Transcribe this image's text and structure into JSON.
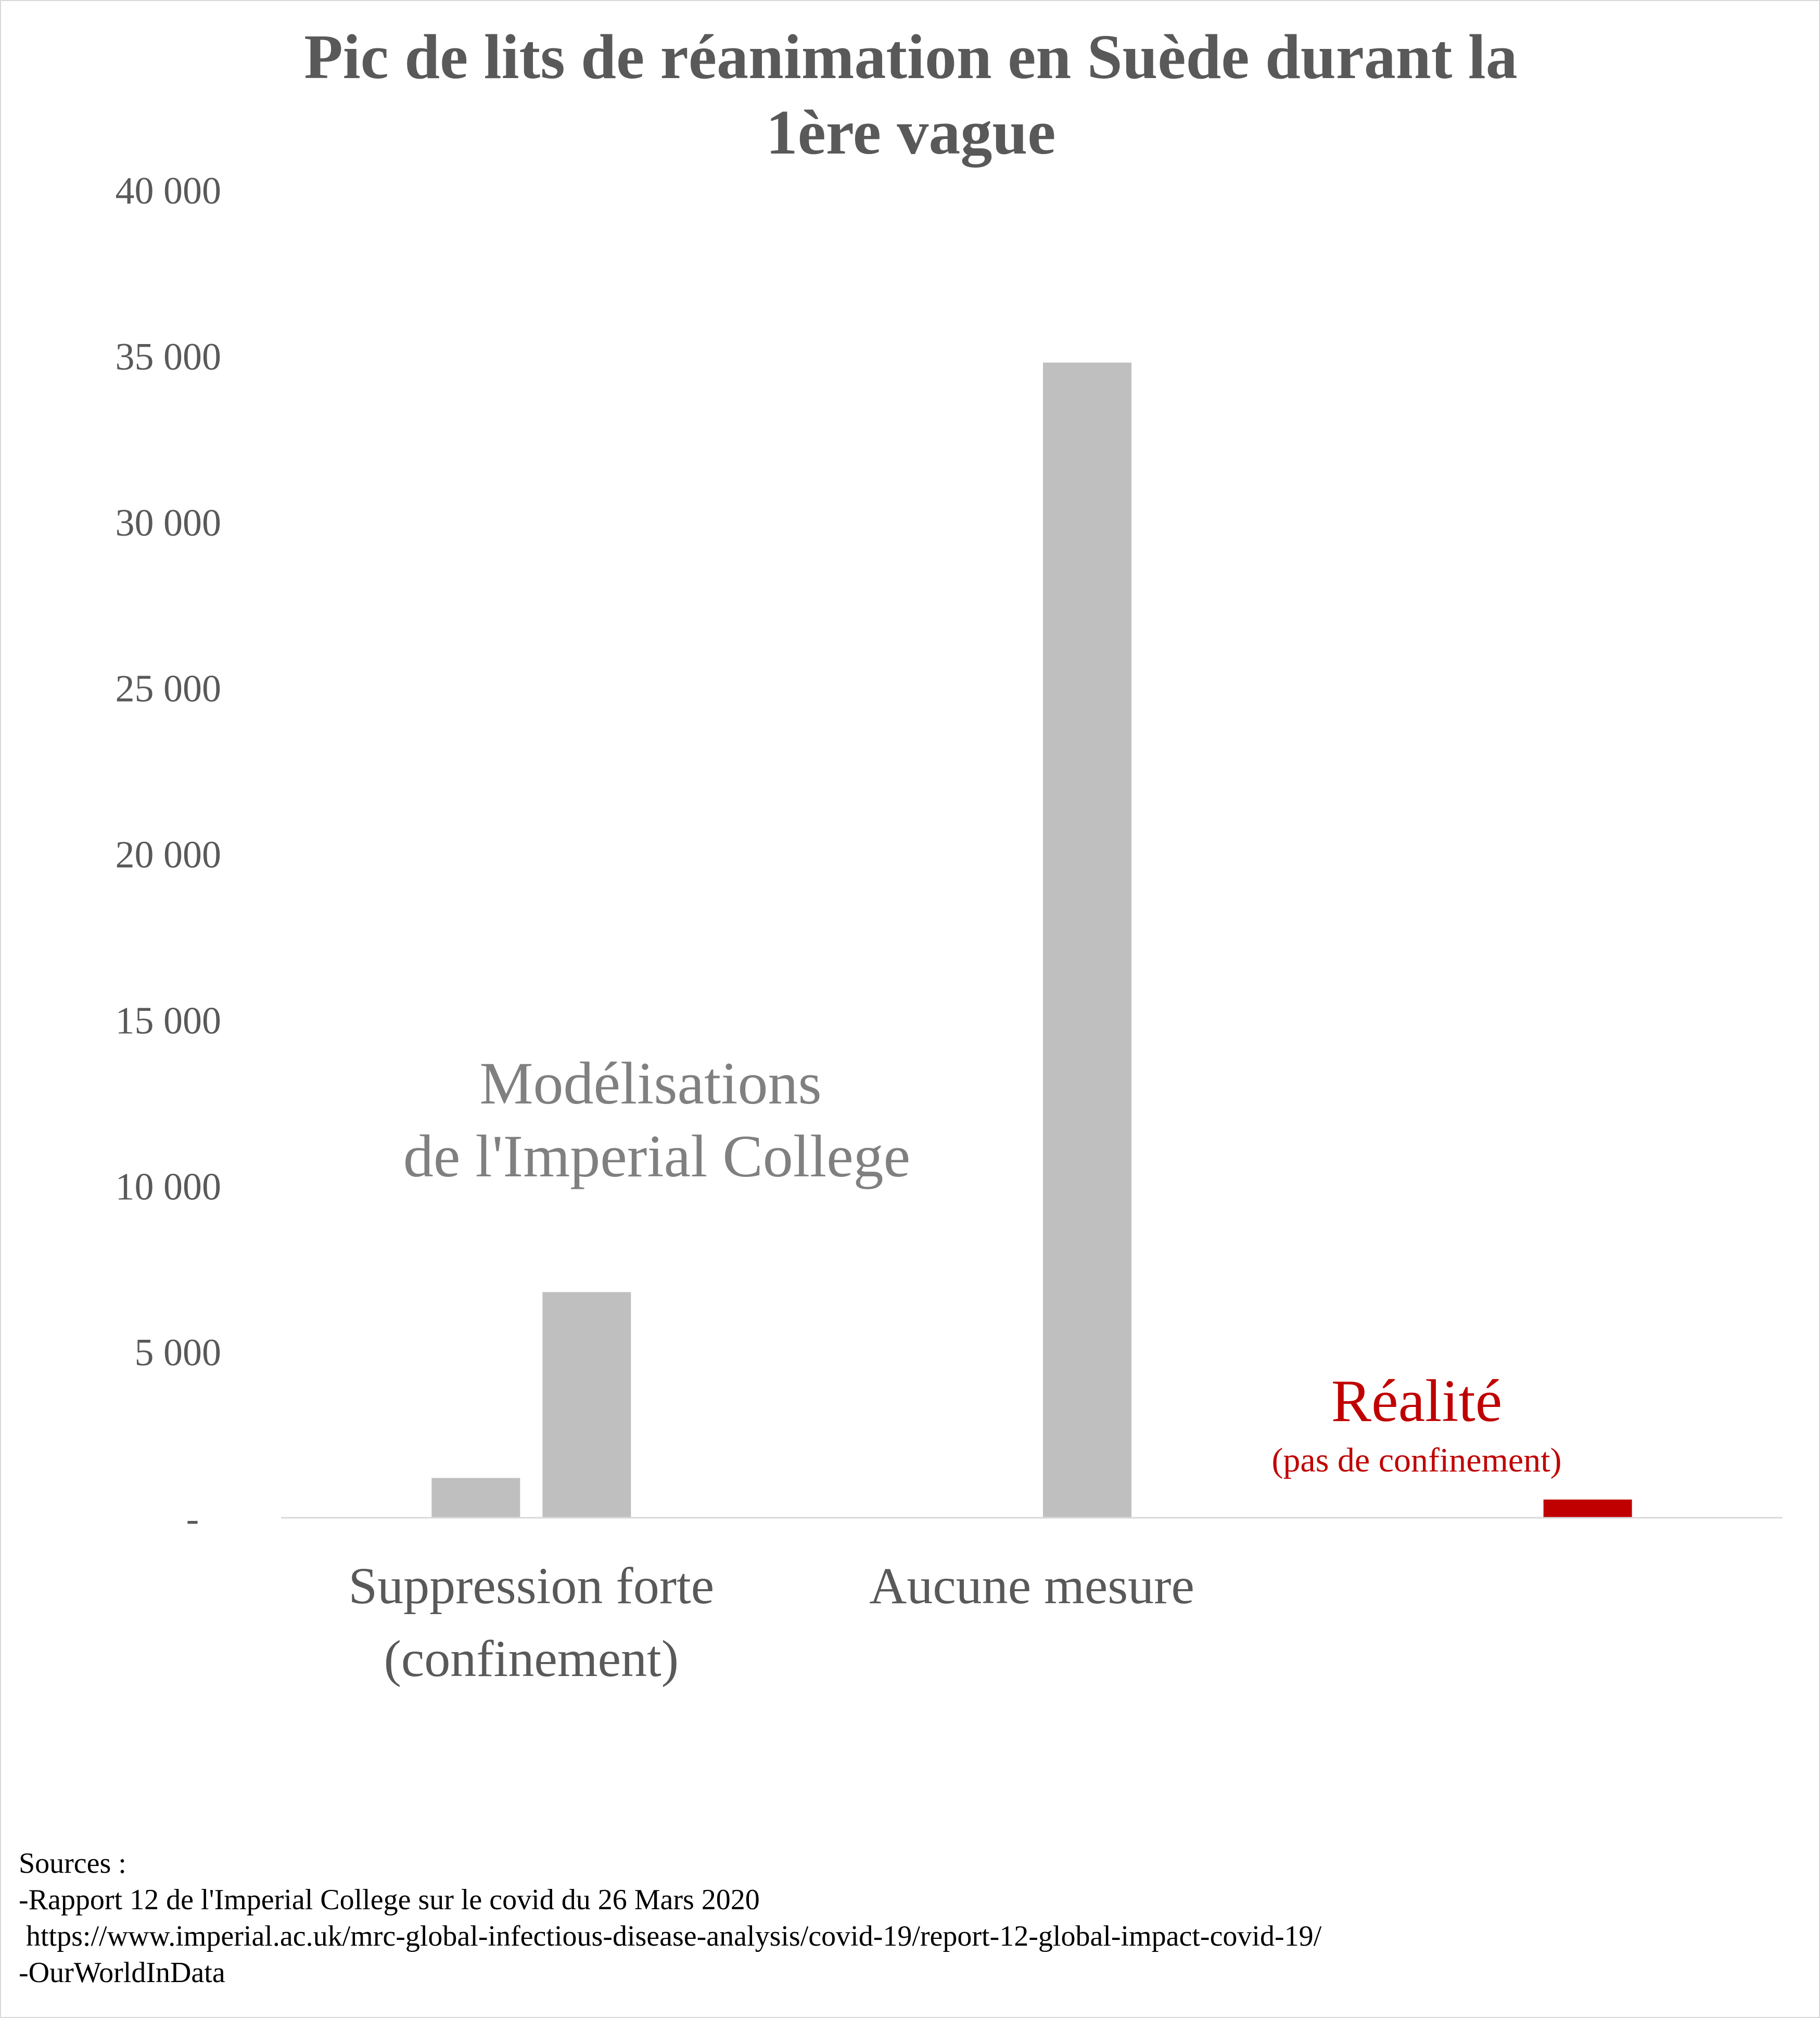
{
  "chart_data": {
    "type": "bar",
    "title_lines": [
      "Pic de lits de réanimation en Suède durant la",
      "1ère vague"
    ],
    "categories": [
      {
        "lines": [
          "Suppression forte",
          "(confinement)"
        ]
      },
      {
        "lines": [
          "Aucune mesure"
        ]
      },
      {
        "lines": [
          ""
        ]
      }
    ],
    "bars": [
      {
        "category_index": 0,
        "slot": 0,
        "value": 1200,
        "color": "#bfbfbf"
      },
      {
        "category_index": 0,
        "slot": 1,
        "value": 6800,
        "color": "#bfbfbf"
      },
      {
        "category_index": 1,
        "slot": 1,
        "value": 34800,
        "color": "#bfbfbf"
      },
      {
        "category_index": 2,
        "slot": 1,
        "value": 550,
        "color": "#c00000"
      }
    ],
    "ylim": [
      0,
      40000
    ],
    "yticks": [
      {
        "value": 0,
        "label": "-"
      },
      {
        "value": 5000,
        "label": "5 000"
      },
      {
        "value": 10000,
        "label": "10 000"
      },
      {
        "value": 15000,
        "label": "15 000"
      },
      {
        "value": 20000,
        "label": "20 000"
      },
      {
        "value": 25000,
        "label": "25 000"
      },
      {
        "value": 30000,
        "label": "30 000"
      },
      {
        "value": 35000,
        "label": "35 000"
      },
      {
        "value": 40000,
        "label": "40 000"
      }
    ],
    "annotations": {
      "model": [
        "Modélisations",
        "de l'Imperial College"
      ],
      "reality": "Réalité",
      "reality_note": "(pas de confinement)"
    },
    "grid": false,
    "legend": "none"
  },
  "sources": [
    "Sources :",
    "-Rapport 12 de l'Imperial College sur le covid du 26 Mars 2020",
    " https://www.imperial.ac.uk/mrc-global-infectious-disease-analysis/covid-19/report-12-global-impact-covid-19/",
    "-OurWorldInData"
  ],
  "colors": {
    "model_bar": "#bfbfbf",
    "reality_bar": "#c00000",
    "text": "#595959",
    "annotation_model": "#808080",
    "annotation_reality": "#c00000",
    "axis_line": "#d9d9d9"
  }
}
